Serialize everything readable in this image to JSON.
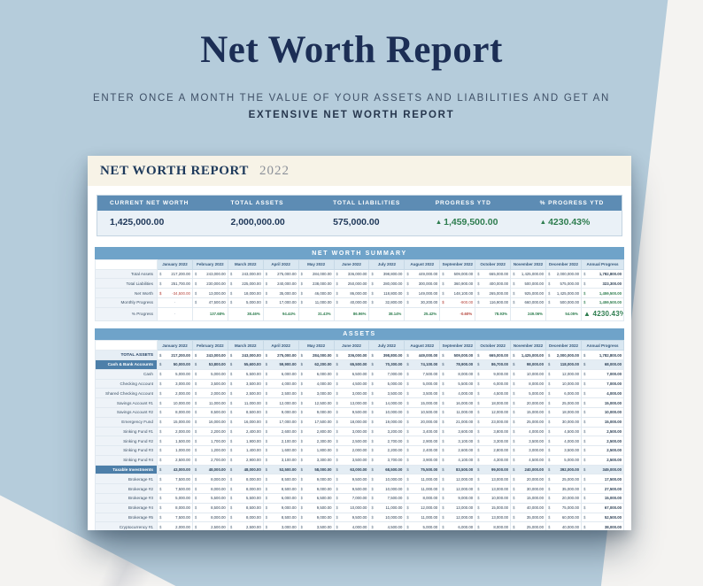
{
  "icons": {
    "trend_up": "▲"
  },
  "colors": {
    "accent_blue": "#5d8cb4",
    "section_blue": "#6fa3c9",
    "green": "#2e7d4f",
    "red": "#b5443c",
    "navy": "#1c2e55",
    "cream": "#f7f3e7"
  },
  "page": {
    "title": "Net Worth Report",
    "subtitle_line1": "ENTER ONCE A MONTH THE VALUE OF YOUR ASSETS AND LIABILITIES AND GET AN",
    "subtitle_line2": "EXTENSIVE NET WORTH REPORT"
  },
  "sheet": {
    "header": {
      "title": "NET WORTH REPORT",
      "year": "2022"
    },
    "metrics": [
      {
        "label": "CURRENT NET WORTH",
        "value": "1,425,000.00",
        "trend": null
      },
      {
        "label": "TOTAL ASSETS",
        "value": "2,000,000.00",
        "trend": null
      },
      {
        "label": "TOTAL LIABILITIES",
        "value": "575,000.00",
        "trend": null
      },
      {
        "label": "PROGRESS YTD",
        "value": "1,459,500.00",
        "trend": "up"
      },
      {
        "label": "% PROGRESS YTD",
        "value": "4230.43%",
        "trend": "up"
      }
    ],
    "columns": [
      "January 2022",
      "February 2022",
      "March 2022",
      "April 2022",
      "May 2022",
      "June 2022",
      "July 2022",
      "August 2022",
      "September 2022",
      "October 2022",
      "November 2022",
      "December 2022",
      "Annual Progress"
    ],
    "summary": {
      "title": "NET WORTH SUMMARY",
      "rows": [
        {
          "label": "Total Assets",
          "type": "money",
          "values": [
            217200,
            243000,
            243000,
            275000,
            284000,
            336000,
            398800,
            449000,
            509000,
            665000,
            1425000,
            2000000,
            1782800
          ]
        },
        {
          "label": "Total Liabilities",
          "type": "money",
          "values": [
            251700,
            230000,
            225000,
            240000,
            238000,
            250000,
            280000,
            300000,
            360900,
            400000,
            500000,
            575000,
            323300
          ]
        },
        {
          "label": "Net Worth",
          "type": "money",
          "values": [
            -34500,
            13000,
            18000,
            35000,
            46000,
            86000,
            118800,
            149000,
            148100,
            265000,
            925000,
            1425000,
            1459500
          ]
        },
        {
          "label": "Monthly Progress",
          "type": "money",
          "values": [
            null,
            47500,
            5000,
            17000,
            11000,
            40000,
            32800,
            30200,
            -900,
            116900,
            660000,
            500000,
            1459500
          ]
        },
        {
          "label": "% Progress",
          "type": "percent",
          "values": [
            null,
            "137.68%",
            "38.46%",
            "94.44%",
            "31.43%",
            "86.96%",
            "38.14%",
            "25.42%",
            "-0.60%",
            "78.93%",
            "249.06%",
            "54.05%",
            "4230.43%"
          ]
        }
      ]
    },
    "assets": {
      "title": "ASSETS",
      "rows": [
        {
          "label": "TOTAL ASSETS",
          "style": "total",
          "type": "money",
          "values": [
            217200,
            243000,
            243000,
            275000,
            284000,
            336000,
            398800,
            449000,
            509000,
            665000,
            1425000,
            2000000,
            1782800
          ]
        },
        {
          "label": "Cash & Bank Accounts",
          "style": "section",
          "type": "money",
          "values": [
            50000,
            53800,
            55600,
            59900,
            62200,
            65500,
            70300,
            74100,
            78900,
            86700,
            98000,
            118000,
            68000
          ]
        },
        {
          "label": "Cash",
          "style": "item",
          "type": "money",
          "values": [
            5000,
            5000,
            5500,
            6000,
            6000,
            6500,
            7000,
            7500,
            8000,
            9000,
            10000,
            12000,
            7000
          ]
        },
        {
          "label": "Checking Account",
          "style": "item",
          "type": "money",
          "values": [
            3000,
            3500,
            3500,
            4000,
            4000,
            4500,
            5000,
            5000,
            5500,
            6000,
            8000,
            10000,
            7000
          ]
        },
        {
          "label": "Shared Checking Account",
          "style": "item",
          "type": "money",
          "values": [
            2000,
            2000,
            2500,
            2500,
            3000,
            3000,
            3500,
            3500,
            4000,
            4500,
            5000,
            6000,
            4000
          ]
        },
        {
          "label": "Savings Account #1",
          "style": "item",
          "type": "money",
          "values": [
            10000,
            11000,
            11000,
            12000,
            12500,
            13000,
            14000,
            15000,
            16000,
            18000,
            20000,
            25000,
            15000
          ]
        },
        {
          "label": "Savings Account #2",
          "style": "item",
          "type": "money",
          "values": [
            8000,
            8500,
            8500,
            9000,
            9000,
            9500,
            10000,
            10500,
            11000,
            12000,
            15000,
            18000,
            10000
          ]
        },
        {
          "label": "Emergency Fund",
          "style": "item",
          "type": "money",
          "values": [
            15000,
            16000,
            16000,
            17000,
            17500,
            18000,
            19000,
            20000,
            21000,
            23000,
            25000,
            30000,
            15000
          ]
        },
        {
          "label": "Sinking Fund #1",
          "style": "item",
          "type": "money",
          "values": [
            2000,
            2200,
            2400,
            2600,
            2800,
            3000,
            3200,
            3400,
            3600,
            3800,
            4000,
            4500,
            2500
          ]
        },
        {
          "label": "Sinking Fund #2",
          "style": "item",
          "type": "money",
          "values": [
            1500,
            1700,
            1900,
            2100,
            2300,
            2500,
            2700,
            2900,
            3100,
            3300,
            3500,
            4000,
            2500
          ]
        },
        {
          "label": "Sinking Fund #3",
          "style": "item",
          "type": "money",
          "values": [
            1000,
            1200,
            1400,
            1600,
            1800,
            2000,
            2200,
            2400,
            2600,
            2800,
            3000,
            3500,
            2500
          ]
        },
        {
          "label": "Sinking Fund #4",
          "style": "item",
          "type": "money",
          "values": [
            2500,
            2700,
            2900,
            3100,
            3300,
            3500,
            3700,
            3900,
            4100,
            4300,
            4500,
            5000,
            2500
          ]
        },
        {
          "label": "Taxable Investments",
          "style": "section",
          "type": "money",
          "values": [
            43000,
            48000,
            48000,
            53500,
            58000,
            63000,
            68500,
            75500,
            83500,
            99000,
            240000,
            392000,
            349000
          ]
        },
        {
          "label": "Brokerage #1",
          "style": "item",
          "type": "money",
          "values": [
            7500,
            8000,
            8000,
            8500,
            9000,
            9500,
            10000,
            11000,
            12000,
            13000,
            20000,
            25000,
            17500
          ]
        },
        {
          "label": "Brokerage #2",
          "style": "item",
          "type": "money",
          "values": [
            7500,
            8000,
            8000,
            8500,
            9000,
            9500,
            10000,
            11000,
            12000,
            13000,
            30000,
            35000,
            27500
          ]
        },
        {
          "label": "Brokerage #3",
          "style": "item",
          "type": "money",
          "values": [
            5000,
            5500,
            5500,
            6000,
            6500,
            7000,
            7500,
            8000,
            9000,
            10000,
            15000,
            20000,
            15000
          ]
        },
        {
          "label": "Brokerage #4",
          "style": "item",
          "type": "money",
          "values": [
            8000,
            8500,
            8500,
            9000,
            9500,
            10000,
            11000,
            12000,
            13000,
            15000,
            40000,
            75000,
            67000
          ]
        },
        {
          "label": "Brokerage #5",
          "style": "item",
          "type": "money",
          "values": [
            7500,
            8000,
            8000,
            8500,
            9000,
            9500,
            10000,
            11000,
            12000,
            13000,
            35000,
            60000,
            52500
          ]
        },
        {
          "label": "Cryptocurrency #1",
          "style": "item",
          "type": "money",
          "values": [
            2000,
            2500,
            2500,
            3000,
            3500,
            4000,
            4500,
            5000,
            6000,
            8000,
            25000,
            40000,
            38000
          ]
        },
        {
          "label": "Cryptocurrency #2",
          "style": "item",
          "type": "money",
          "values": [
            1500,
            2000,
            2000,
            2500,
            3000,
            3500,
            4000,
            4500,
            5000,
            7000,
            20000,
            35000,
            33500
          ]
        },
        {
          "label": "Cryptocurrency #3",
          "style": "item",
          "type": "money",
          "values": [
            1000,
            1500,
            1500,
            2000,
            2500,
            3000,
            3500,
            4000,
            4500,
            6000,
            15000,
            30000,
            29000
          ]
        },
        {
          "label": "Cryptocurrency #4",
          "style": "item",
          "type": "money",
          "values": [
            2500,
            3000,
            3000,
            3500,
            4000,
            4500,
            5000,
            5500,
            6000,
            9000,
            28000,
            45000,
            42500
          ]
        },
        {
          "label": "Cryptocurrency #5",
          "style": "item",
          "type": "money",
          "values": [
            500,
            1000,
            1000,
            1500,
            2000,
            2500,
            3000,
            3500,
            4000,
            5000,
            12000,
            27000,
            26500
          ]
        }
      ]
    }
  }
}
